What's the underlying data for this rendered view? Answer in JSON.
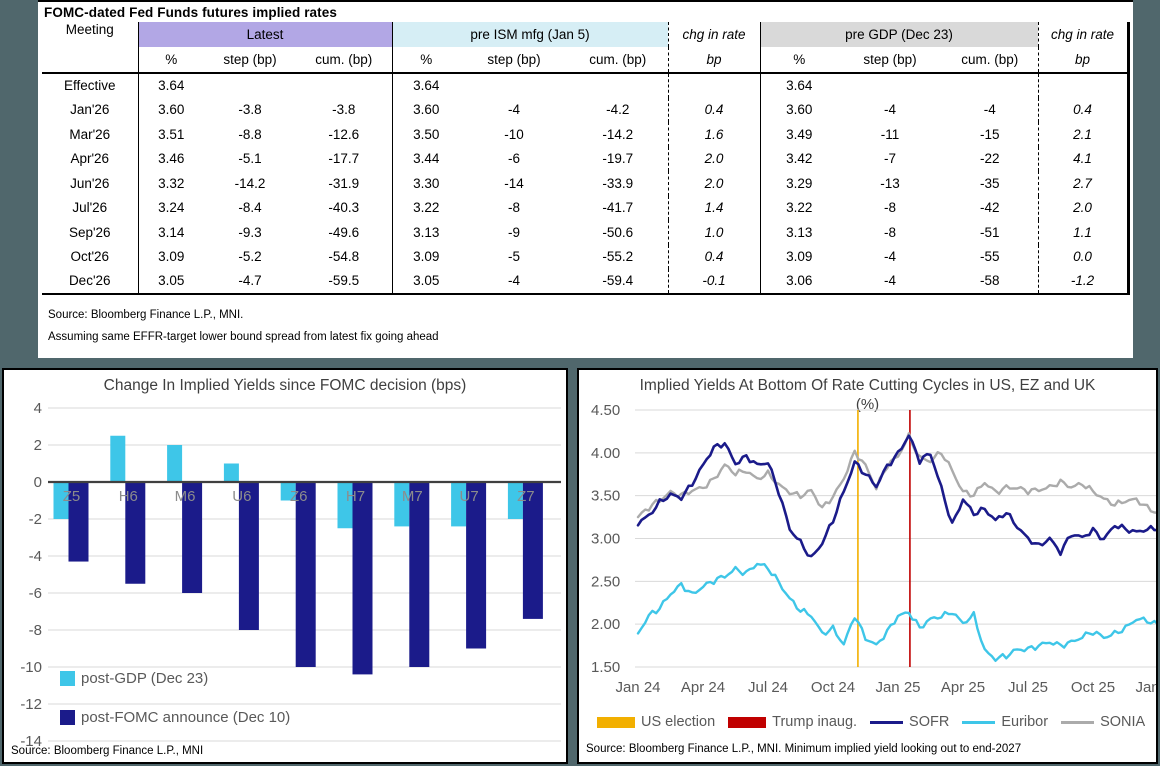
{
  "page": {
    "background": "#50676C"
  },
  "table": {
    "title": "FOMC-dated Fed Funds futures implied rates",
    "col_groups": {
      "meeting": "Meeting",
      "latest": "Latest",
      "ism": "pre ISM mfg (Jan 5)",
      "chg1": "chg in rate",
      "gdp": "pre GDP (Dec 23)",
      "chg2": "chg in rate"
    },
    "sub_headers": {
      "pct": "%",
      "step": "step (bp)",
      "cum": "cum. (bp)",
      "bp": "bp"
    },
    "fills": {
      "latest": "#B2A7E5",
      "ism": "#D6EEF5",
      "gdp": "#D9D9D9"
    },
    "rows": [
      [
        "Effective",
        "3.64",
        "",
        "",
        "3.64",
        "",
        "",
        "",
        "3.64",
        "",
        "",
        ""
      ],
      [
        "Jan'26",
        "3.60",
        "-3.8",
        "-3.8",
        "3.60",
        "-4",
        "-4.2",
        "0.4",
        "3.60",
        "-4",
        "-4",
        "0.4"
      ],
      [
        "Mar'26",
        "3.51",
        "-8.8",
        "-12.6",
        "3.50",
        "-10",
        "-14.2",
        "1.6",
        "3.49",
        "-11",
        "-15",
        "2.1"
      ],
      [
        "Apr'26",
        "3.46",
        "-5.1",
        "-17.7",
        "3.44",
        "-6",
        "-19.7",
        "2.0",
        "3.42",
        "-7",
        "-22",
        "4.1"
      ],
      [
        "Jun'26",
        "3.32",
        "-14.2",
        "-31.9",
        "3.30",
        "-14",
        "-33.9",
        "2.0",
        "3.29",
        "-13",
        "-35",
        "2.7"
      ],
      [
        "Jul'26",
        "3.24",
        "-8.4",
        "-40.3",
        "3.22",
        "-8",
        "-41.7",
        "1.4",
        "3.22",
        "-8",
        "-42",
        "2.0"
      ],
      [
        "Sep'26",
        "3.14",
        "-9.3",
        "-49.6",
        "3.13",
        "-9",
        "-50.6",
        "1.0",
        "3.13",
        "-8",
        "-51",
        "1.1"
      ],
      [
        "Oct'26",
        "3.09",
        "-5.2",
        "-54.8",
        "3.09",
        "-5",
        "-55.2",
        "0.4",
        "3.09",
        "-4",
        "-55",
        "0.0"
      ],
      [
        "Dec'26",
        "3.05",
        "-4.7",
        "-59.5",
        "3.05",
        "-4",
        "-59.4",
        "-0.1",
        "3.06",
        "-4",
        "-58",
        "-1.2"
      ]
    ],
    "footnotes": [
      "Source: Bloomberg Finance L.P., MNI.",
      "Assuming same  EFFR-target lower bound spread from latest fix going ahead"
    ]
  },
  "chart_data": [
    {
      "type": "bar",
      "title": "Change In Implied Yields since FOMC decision (bps)",
      "categories": [
        "Z5",
        "H6",
        "M6",
        "U6",
        "Z6",
        "H7",
        "M7",
        "U7",
        "Z7"
      ],
      "series": [
        {
          "name": "post-GDP (Dec 23)",
          "color": "#3EC6E8",
          "values": [
            -2.0,
            2.5,
            2.0,
            1.0,
            -1.0,
            -2.5,
            -2.4,
            -2.4,
            -2.0
          ]
        },
        {
          "name": "post-FOMC announce (Dec 10)",
          "color": "#1B1B8A",
          "values": [
            -4.3,
            -5.5,
            -6.0,
            -8.0,
            -10.0,
            -10.4,
            -10.0,
            -9.0,
            -7.4
          ]
        }
      ],
      "ylim": [
        -14,
        4
      ],
      "ytick_step": 2,
      "grid": "horizontal",
      "legend_position": "bottom-left-inside",
      "source": "Source: Bloomberg Finance L.P., MNI"
    },
    {
      "type": "line",
      "title": "Implied Yields At Bottom Of Rate Cutting Cycles in US, EZ and UK",
      "subtitle": "(%)",
      "x_ticks": [
        "Jan 24",
        "Apr 24",
        "Jul 24",
        "Oct 24",
        "Jan 25",
        "Apr 25",
        "Jul 25",
        "Oct 25",
        "Jan 26"
      ],
      "x_tick_months": [
        0,
        3,
        6,
        9,
        12,
        15,
        18,
        21,
        24
      ],
      "x_start_month": 0,
      "x_step_months": 0.5,
      "ylim": [
        1.5,
        4.5
      ],
      "ytick_step": 0.5,
      "grid": "horizontal",
      "series": [
        {
          "name": "SONIA",
          "color": "#ABABAB",
          "width": 2.4,
          "values": [
            3.25,
            3.35,
            3.45,
            3.55,
            3.5,
            3.55,
            3.6,
            3.7,
            3.85,
            3.75,
            3.8,
            3.7,
            3.75,
            3.62,
            3.55,
            3.5,
            3.55,
            3.35,
            3.5,
            3.7,
            4.0,
            3.85,
            3.6,
            3.85,
            3.95,
            4.2,
            3.95,
            3.9,
            4.0,
            3.8,
            3.55,
            3.5,
            3.65,
            3.55,
            3.6,
            3.58,
            3.55,
            3.58,
            3.6,
            3.65,
            3.6,
            3.65,
            3.55,
            3.45,
            3.4,
            3.45,
            3.45,
            3.35,
            3.3
          ]
        },
        {
          "name": "Euribor",
          "color": "#3EC6E8",
          "width": 2.4,
          "values": [
            1.88,
            2.1,
            2.2,
            2.35,
            2.45,
            2.35,
            2.45,
            2.5,
            2.55,
            2.65,
            2.6,
            2.7,
            2.65,
            2.5,
            2.3,
            2.15,
            2.1,
            1.9,
            1.95,
            1.75,
            2.1,
            1.85,
            1.75,
            1.9,
            2.1,
            2.15,
            1.95,
            2.05,
            2.1,
            2.15,
            2.0,
            2.1,
            1.7,
            1.6,
            1.62,
            1.7,
            1.72,
            1.75,
            1.78,
            1.75,
            1.8,
            1.85,
            1.9,
            1.85,
            1.9,
            1.95,
            2.05,
            2.05,
            2.0
          ]
        },
        {
          "name": "SOFR",
          "color": "#1B1B8A",
          "width": 2.6,
          "values": [
            3.18,
            3.28,
            3.42,
            3.5,
            3.48,
            3.65,
            3.85,
            4.05,
            4.12,
            3.88,
            3.95,
            3.85,
            3.9,
            3.55,
            3.1,
            2.95,
            2.78,
            2.95,
            3.2,
            3.55,
            3.9,
            3.75,
            3.6,
            3.85,
            4.0,
            4.2,
            3.9,
            4.0,
            3.6,
            3.15,
            3.45,
            3.3,
            3.35,
            3.2,
            3.3,
            3.15,
            3.0,
            2.9,
            3.0,
            2.85,
            3.05,
            3.0,
            3.1,
            3.0,
            3.15,
            3.1,
            3.08,
            3.12,
            3.1
          ]
        }
      ],
      "events": [
        {
          "name": "US election",
          "month": 10.15,
          "color": "#F2AF00"
        },
        {
          "name": "Trump inaug.",
          "month": 12.55,
          "color": "#C00000"
        }
      ],
      "legend": [
        {
          "label": "US election",
          "swatch": "rect",
          "color": "#F2AF00"
        },
        {
          "label": "Trump inaug.",
          "swatch": "rect",
          "color": "#C00000"
        },
        {
          "label": "SOFR",
          "swatch": "line",
          "color": "#1B1B8A"
        },
        {
          "label": "Euribor",
          "swatch": "line",
          "color": "#3EC6E8"
        },
        {
          "label": "SONIA",
          "swatch": "line",
          "color": "#ABABAB"
        }
      ],
      "source": "Source: Bloomberg Finance L.P., MNI. Minimum implied yield looking out to end-2027"
    }
  ]
}
